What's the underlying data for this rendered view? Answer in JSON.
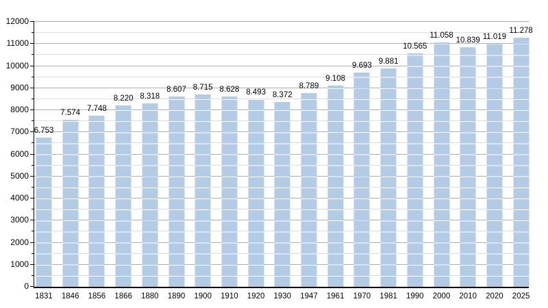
{
  "chart": {
    "bar_color": "#b3cbe4",
    "bar_stripe_color": "#ffffff",
    "grid_major_color": "#aeaeae",
    "grid_minor_color": "#dcdcdc",
    "top_border_color": "#a6a6a6",
    "axis_color": "#000000",
    "text_color": "#000000"
  },
  "chart_data": {
    "type": "bar",
    "title": "",
    "xlabel": "",
    "ylabel": "",
    "ylim": [
      0,
      12000
    ],
    "y_major_step": 1000,
    "y_minor_step": 500,
    "grid": true,
    "legend_position": "none",
    "y_tick_labels": [
      "0",
      "1000",
      "2000",
      "3000",
      "4000",
      "5000",
      "6000",
      "7000",
      "8000",
      "9000",
      "10000",
      "11000",
      "12000"
    ],
    "categories": [
      "1831",
      "1846",
      "1856",
      "1866",
      "1880",
      "1890",
      "1900",
      "1910",
      "1920",
      "1930",
      "1947",
      "1961",
      "1970",
      "1981",
      "1990",
      "2000",
      "2010",
      "2020",
      "2025"
    ],
    "values": [
      6753,
      7574,
      7748,
      8220,
      8318,
      8607,
      8715,
      8628,
      8493,
      8372,
      8789,
      9108,
      9693,
      9881,
      10565,
      11058,
      10839,
      11019,
      11278
    ],
    "bar_labels": [
      "6.753",
      "7.574",
      "7.748",
      "8.220",
      "8.318",
      "8.607",
      "8.715",
      "8.628",
      "8.493",
      "8.372",
      "8.789",
      "9.108",
      "9.693",
      "9.881",
      "10.565",
      "11.058",
      "10.839",
      "11.019",
      "11.278"
    ]
  }
}
